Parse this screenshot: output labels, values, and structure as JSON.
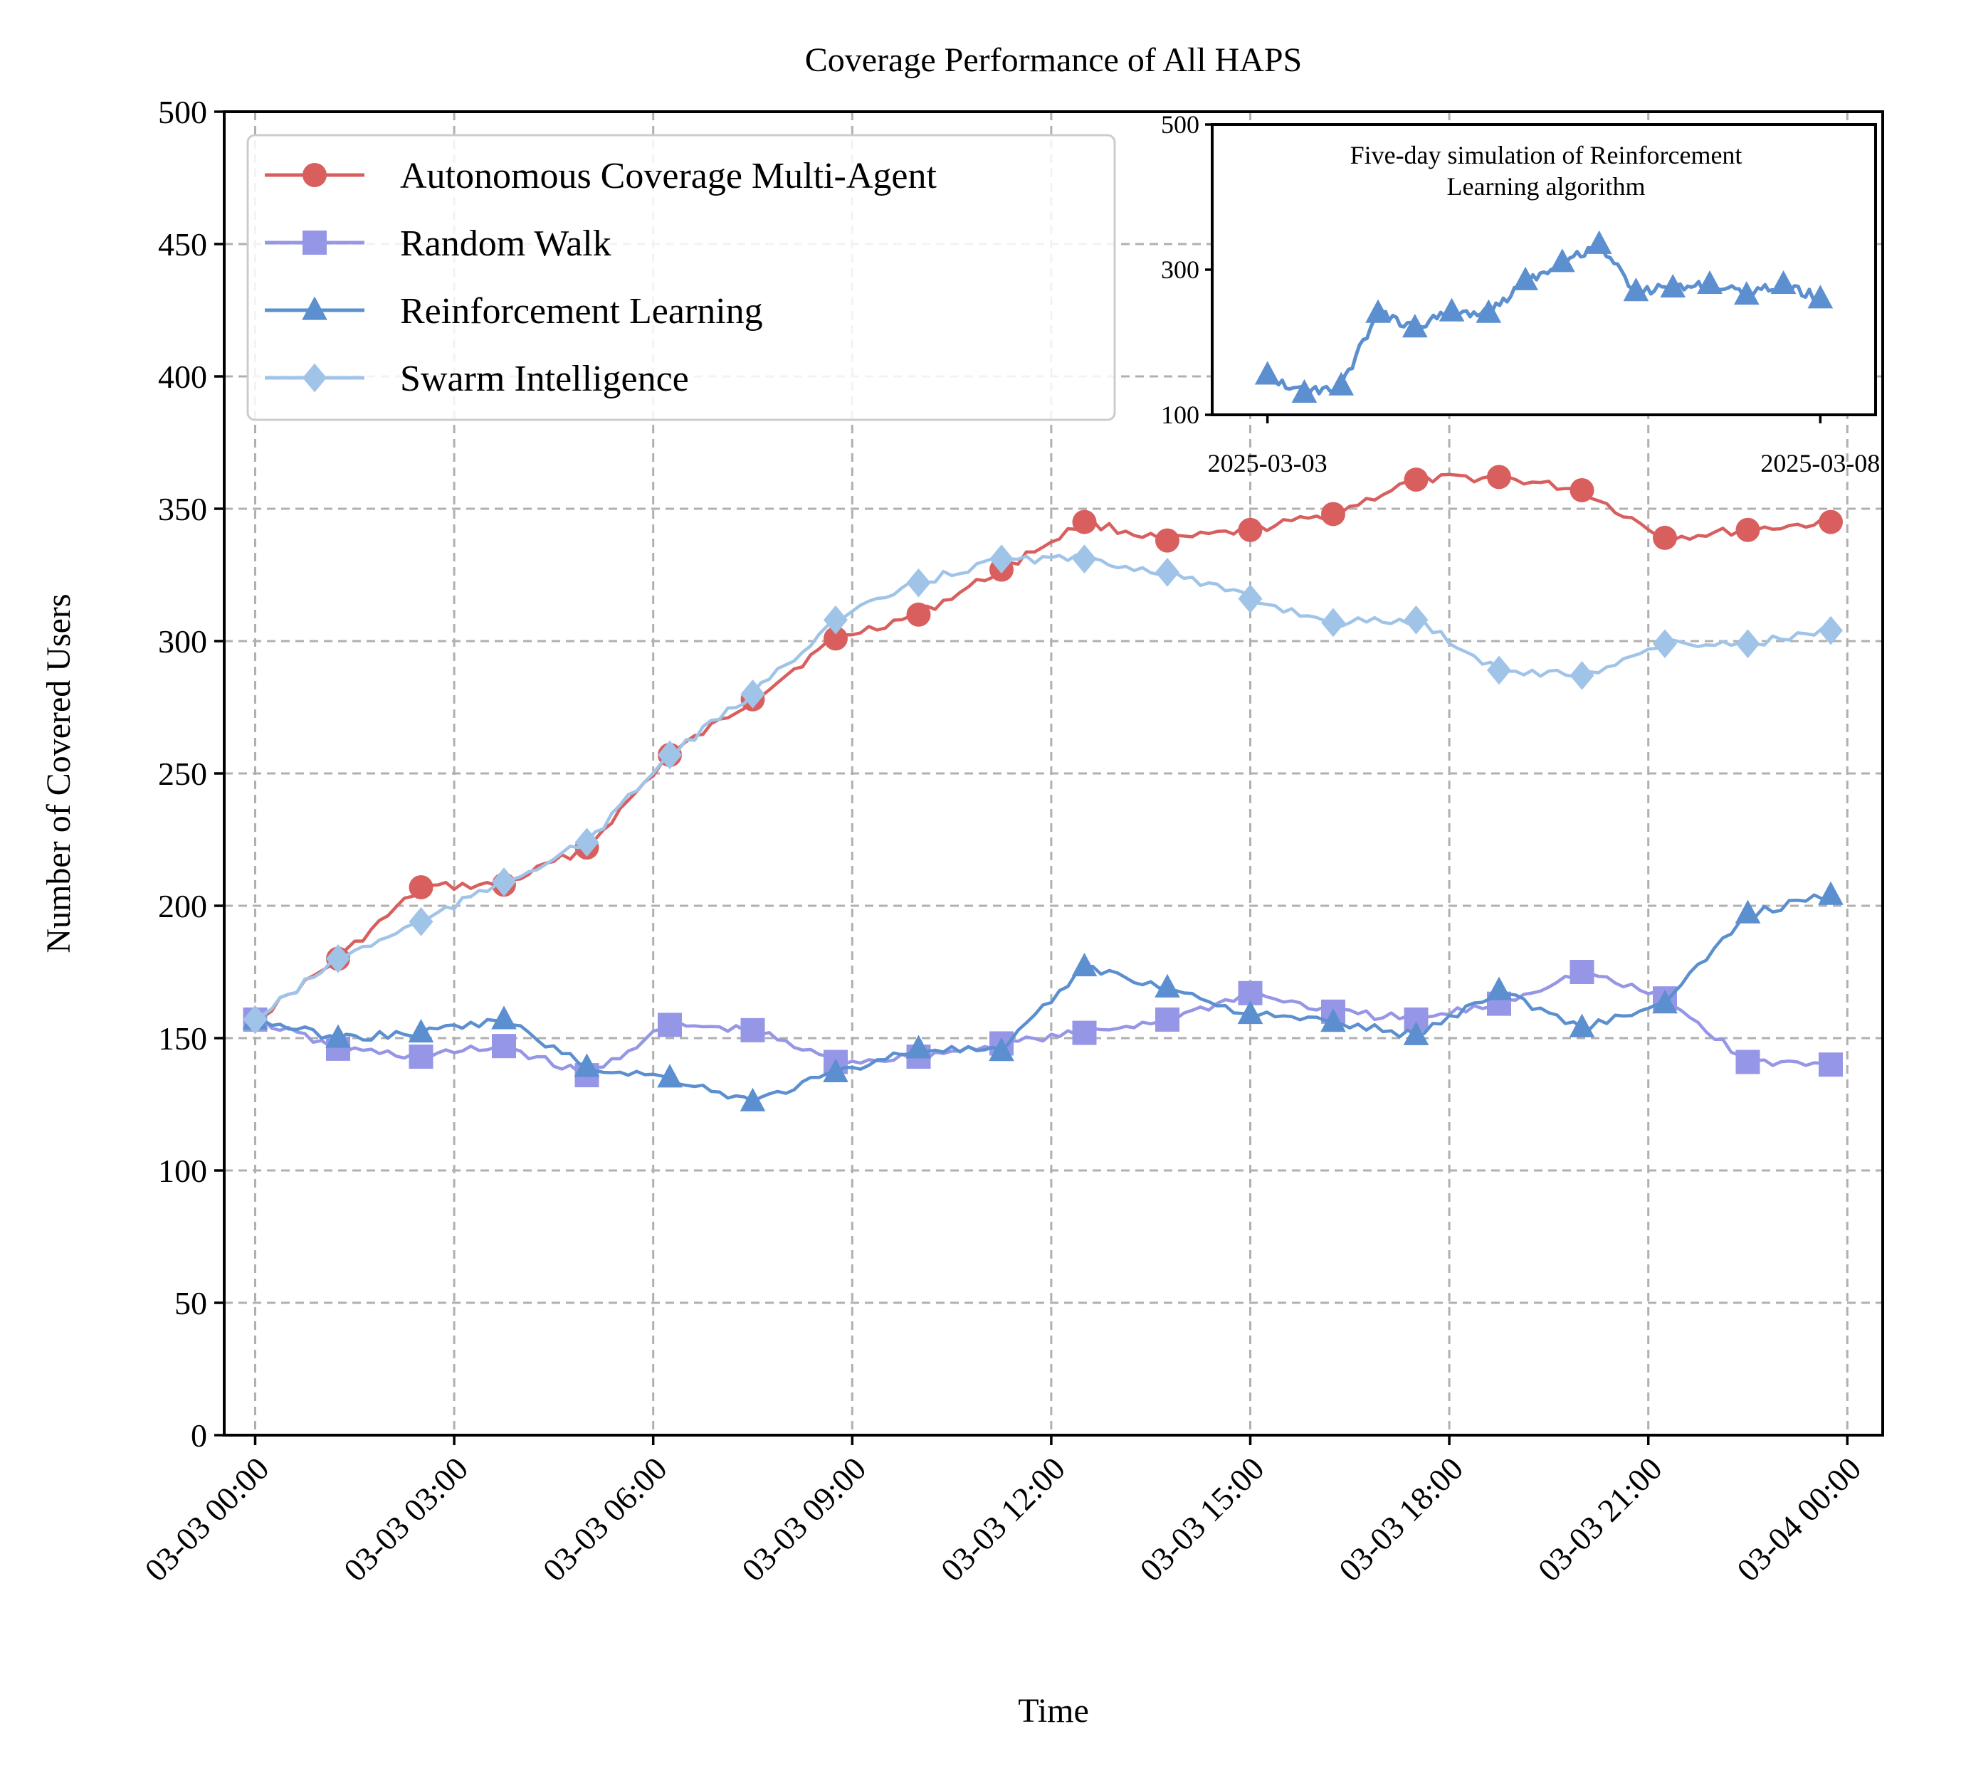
{
  "chart_data": [
    {
      "type": "line",
      "title": "Coverage Performance of All HAPS",
      "xlabel": "Time",
      "ylabel": "Number of Covered Users",
      "ylim": [
        0,
        500
      ],
      "xlim": [
        "03-02 23:32",
        "03-04 00:32"
      ],
      "grid": true,
      "legend_position": "top-left",
      "x_ticks": [
        "03-03 00:00",
        "03-03 03:00",
        "03-03 06:00",
        "03-03 09:00",
        "03-03 12:00",
        "03-03 15:00",
        "03-03 18:00",
        "03-03 21:00",
        "03-04 00:00"
      ],
      "y_ticks": [
        0,
        50,
        100,
        150,
        200,
        250,
        300,
        350,
        400,
        450,
        500
      ],
      "x": [
        "03-03 00:00",
        "03-03 01:15",
        "03-03 02:30",
        "03-03 03:45",
        "03-03 05:00",
        "03-03 06:15",
        "03-03 07:30",
        "03-03 08:45",
        "03-03 10:00",
        "03-03 11:15",
        "03-03 12:30",
        "03-03 13:45",
        "03-03 15:00",
        "03-03 16:15",
        "03-03 17:30",
        "03-03 18:45",
        "03-03 20:00",
        "03-03 21:15",
        "03-03 22:30",
        "03-03 23:45"
      ],
      "series": [
        {
          "name": "Autonomous Coverage Multi-Agent",
          "color": "#d95f5f",
          "marker": "circle",
          "values": [
            157,
            180,
            207,
            208,
            222,
            257,
            278,
            301,
            310,
            327,
            345,
            338,
            342,
            348,
            361,
            362,
            357,
            339,
            342,
            345
          ]
        },
        {
          "name": "Random Walk",
          "color": "#9696e6",
          "marker": "square",
          "values": [
            157,
            146,
            143,
            147,
            136,
            155,
            153,
            141,
            143,
            148,
            152,
            157,
            167,
            160,
            157,
            163,
            175,
            165,
            141,
            140
          ]
        },
        {
          "name": "Reinforcement Learning",
          "color": "#5b8fcf",
          "marker": "triangle",
          "values": [
            157,
            150,
            152,
            157,
            139,
            135,
            126,
            137,
            146,
            145,
            177,
            169,
            159,
            156,
            151,
            168,
            154,
            163,
            197,
            204
          ]
        },
        {
          "name": "Swarm Intelligence",
          "color": "#a0c4e8",
          "marker": "diamond",
          "values": [
            157,
            180,
            194,
            209,
            224,
            257,
            280,
            308,
            322,
            331,
            331,
            326,
            316,
            307,
            308,
            289,
            287,
            299,
            299,
            304
          ]
        }
      ]
    },
    {
      "type": "line",
      "title": "Five-day simulation of Reinforcement Learning algorithm",
      "ylim": [
        100,
        500
      ],
      "xlim": [
        "2025-03-02 12:00",
        "2025-03-08 12:00"
      ],
      "x_ticks": [
        "2025-03-03",
        "2025-03-08"
      ],
      "y_ticks": [
        100,
        300,
        500
      ],
      "grid": false,
      "x": [
        "2025-03-03 00:00",
        "2025-03-03 08:00",
        "2025-03-03 16:00",
        "2025-03-04 00:00",
        "2025-03-04 08:00",
        "2025-03-04 16:00",
        "2025-03-05 00:00",
        "2025-03-05 08:00",
        "2025-03-05 16:00",
        "2025-03-06 00:00",
        "2025-03-06 08:00",
        "2025-03-06 16:00",
        "2025-03-07 00:00",
        "2025-03-07 08:00",
        "2025-03-07 16:00",
        "2025-03-08 00:00"
      ],
      "series": [
        {
          "name": "Reinforcement Learning",
          "color": "#5b8fcf",
          "marker": "triangle",
          "values": [
            155,
            130,
            140,
            240,
            220,
            242,
            240,
            285,
            310,
            335,
            270,
            275,
            280,
            265,
            280,
            260
          ]
        }
      ]
    }
  ]
}
